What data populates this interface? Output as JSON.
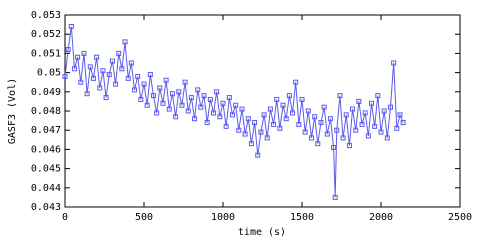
{
  "chart_data": {
    "type": "line",
    "xlabel": "time (s)",
    "ylabel": "GASF3 (Vol)",
    "xlim": [
      0,
      2500
    ],
    "xticks": [
      0,
      500,
      1000,
      1500,
      2000,
      2500
    ],
    "ylim": [
      0.043,
      0.053
    ],
    "yticks": [
      0.043,
      0.044,
      0.045,
      0.046,
      0.047,
      0.048,
      0.049,
      0.05,
      0.051,
      0.052,
      0.053
    ],
    "color": "#5a5aee",
    "marker": "square",
    "x": [
      0,
      20,
      40,
      60,
      80,
      100,
      120,
      140,
      160,
      180,
      200,
      220,
      240,
      260,
      280,
      300,
      320,
      340,
      360,
      380,
      400,
      420,
      440,
      460,
      480,
      500,
      520,
      540,
      560,
      580,
      600,
      620,
      640,
      660,
      680,
      700,
      720,
      740,
      760,
      780,
      800,
      820,
      840,
      860,
      880,
      900,
      920,
      940,
      960,
      980,
      1000,
      1020,
      1040,
      1060,
      1080,
      1100,
      1120,
      1140,
      1160,
      1180,
      1200,
      1220,
      1240,
      1260,
      1280,
      1300,
      1320,
      1340,
      1360,
      1380,
      1400,
      1420,
      1440,
      1460,
      1480,
      1500,
      1520,
      1540,
      1560,
      1580,
      1600,
      1620,
      1640,
      1660,
      1680,
      1700,
      1710,
      1720,
      1740,
      1760,
      1780,
      1800,
      1820,
      1840,
      1860,
      1880,
      1900,
      1920,
      1940,
      1960,
      1980,
      2000,
      2020,
      2040,
      2060,
      2080,
      2100,
      2120,
      2140
    ],
    "y": [
      0.0498,
      0.0512,
      0.0524,
      0.0502,
      0.0508,
      0.0495,
      0.051,
      0.0489,
      0.0503,
      0.0497,
      0.0508,
      0.0492,
      0.0501,
      0.0487,
      0.0499,
      0.0506,
      0.0494,
      0.051,
      0.0502,
      0.0516,
      0.0497,
      0.0505,
      0.0491,
      0.0498,
      0.0486,
      0.0494,
      0.0483,
      0.0499,
      0.0488,
      0.0479,
      0.0492,
      0.0484,
      0.0496,
      0.0481,
      0.0489,
      0.0477,
      0.049,
      0.0483,
      0.0495,
      0.048,
      0.0487,
      0.0476,
      0.0491,
      0.0482,
      0.0488,
      0.0474,
      0.0486,
      0.0479,
      0.049,
      0.0477,
      0.0484,
      0.0472,
      0.0487,
      0.0478,
      0.0483,
      0.047,
      0.0481,
      0.0468,
      0.0476,
      0.0463,
      0.0474,
      0.0457,
      0.0469,
      0.0478,
      0.0466,
      0.0481,
      0.0473,
      0.0486,
      0.0471,
      0.0483,
      0.0476,
      0.0488,
      0.0479,
      0.0495,
      0.0473,
      0.0486,
      0.0469,
      0.048,
      0.0466,
      0.0477,
      0.0463,
      0.0474,
      0.0482,
      0.0468,
      0.0476,
      0.0461,
      0.0435,
      0.047,
      0.0488,
      0.0466,
      0.0478,
      0.0462,
      0.0481,
      0.047,
      0.0485,
      0.0473,
      0.0479,
      0.0467,
      0.0484,
      0.0472,
      0.0488,
      0.0469,
      0.048,
      0.0466,
      0.0482,
      0.0505,
      0.0471,
      0.0478,
      0.0474
    ]
  }
}
